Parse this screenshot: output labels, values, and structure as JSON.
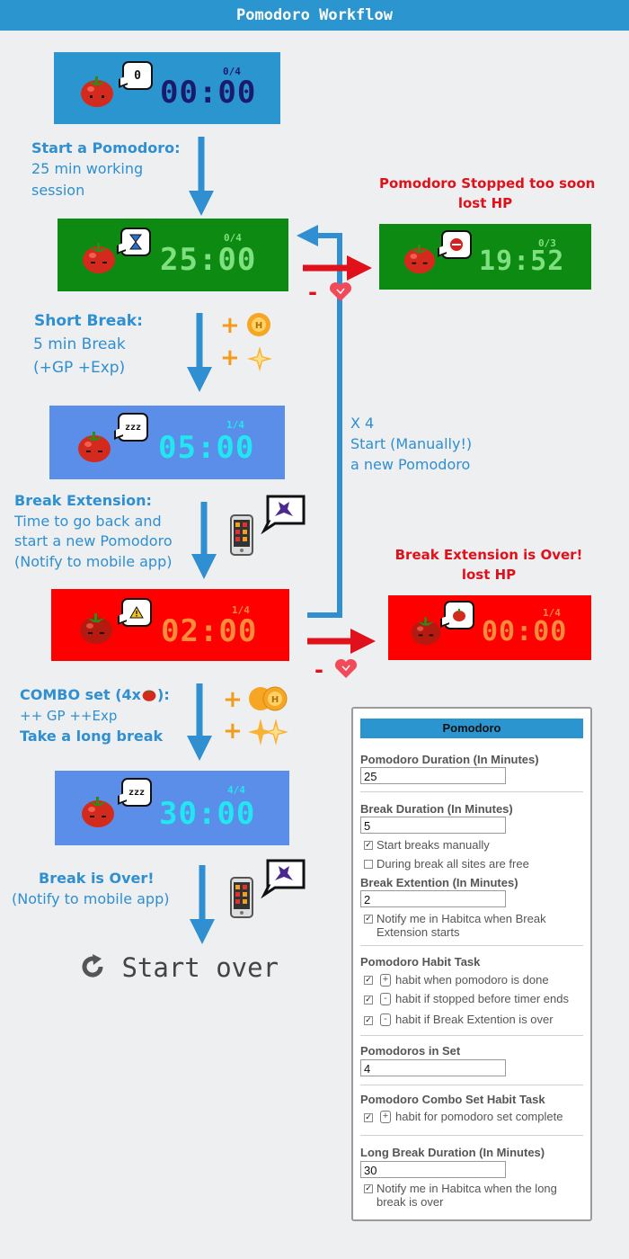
{
  "header": {
    "title": "Pomodoro Workflow"
  },
  "colors": {
    "header": "#2b95cf",
    "work": "#0d8a12",
    "break": "#5b8ee8",
    "extension": "#ff0000",
    "idle": "#2b95cf",
    "arrow_blue": "#2f8fd0",
    "arrow_red": "#e0111a",
    "bonus": "#f39b1d"
  },
  "timers": [
    {
      "id": "idle",
      "time": "00:00",
      "count": "0/4",
      "bubble": "0"
    },
    {
      "id": "work",
      "time": "25:00",
      "count": "0/4",
      "bubble": "hourglass-icon"
    },
    {
      "id": "stopped",
      "time": "19:52",
      "count": "0/3",
      "bubble": "stop-icon"
    },
    {
      "id": "short-break",
      "time": "05:00",
      "count": "1/4",
      "bubble": "zzz"
    },
    {
      "id": "extension",
      "time": "02:00",
      "count": "1/4",
      "bubble": "warning-icon"
    },
    {
      "id": "extension-over",
      "time": "00:00",
      "count": "1/4",
      "bubble": "tomato"
    },
    {
      "id": "long-break",
      "time": "30:00",
      "count": "4/4",
      "bubble": "zzz"
    }
  ],
  "steps": {
    "start": {
      "title": "Start a Pomodoro:",
      "lines": [
        "25 min working",
        "session"
      ]
    },
    "short_break": {
      "title": "Short Break:",
      "lines": [
        "5 min Break",
        "(+GP +Exp)"
      ]
    },
    "extension": {
      "title": "Break Extension:",
      "lines": [
        "Time to go back and",
        "start a new Pomodoro",
        "(Notify to mobile app)"
      ]
    },
    "combo": {
      "title": "COMBO set (4x",
      "title_end": "):",
      "line": "++ GP ++Exp",
      "line2": "Take a long break"
    },
    "over": {
      "title": "Break is Over!",
      "line": "(Notify to mobile app)"
    },
    "loop": {
      "count": "X 4",
      "lines": [
        "Start (Manually!)",
        "a new Pomodoro"
      ]
    }
  },
  "penalties": {
    "stopped": {
      "line1": "Pomodoro Stopped too soon",
      "line2": "lost HP"
    },
    "extension_over": {
      "line1": "Break Extension is Over!",
      "line2": "lost HP"
    }
  },
  "signs": {
    "plus": "+",
    "minus": "-"
  },
  "start_over": {
    "label": "Start over",
    "icon": "refresh-icon"
  },
  "settings": {
    "title": "Pomodoro",
    "duration_label": "Pomodoro Duration (In Minutes)",
    "duration_value": "25",
    "break_label": "Break Duration (In Minutes)",
    "break_value": "5",
    "start_manually": "Start breaks manually",
    "sites_free": "During break all sites are free",
    "extension_label": "Break Extention (In Minutes)",
    "extension_value": "2",
    "notify_ext_1": "Notify me in Habitca when Break",
    "notify_ext_2": "Extension starts",
    "habit_label": "Pomodoro Habit Task",
    "habit_done": "habit when pomodoro is done",
    "habit_stopped": "habit if stopped before timer ends",
    "habit_ext": "habit if Break Extention is over",
    "set_label": "Pomodoros in Set",
    "set_value": "4",
    "combo_label": "Pomodoro Combo Set Habit Task",
    "combo_habit": "habit for pomodoro set complete",
    "long_label": "Long Break Duration (In Minutes)",
    "long_value": "30",
    "notify_long_1": "Notify me in Habitca when the long",
    "notify_long_2": "break is over",
    "check": "✓"
  }
}
